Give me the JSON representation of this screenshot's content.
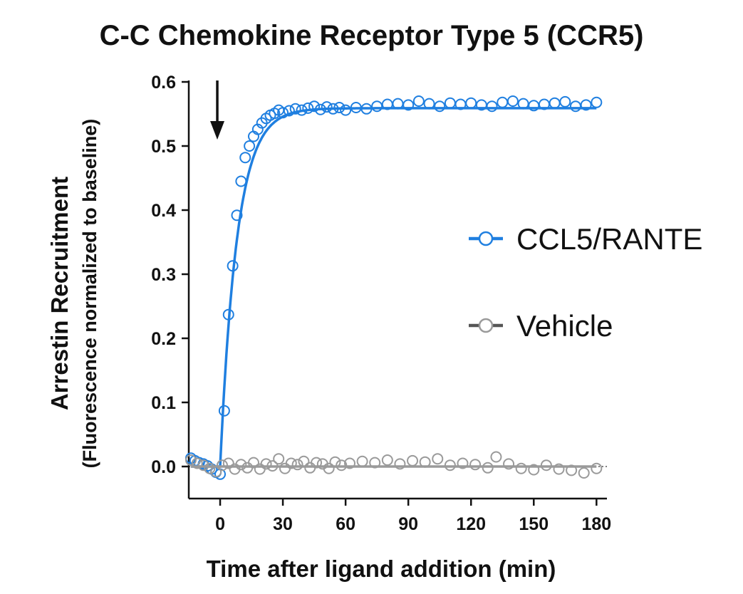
{
  "chart_data": {
    "type": "scatter",
    "title": "C-C Chemokine Receptor Type 5 (CCR5)",
    "ylabel_line1": "Arrestin Recruitment",
    "ylabel_line2": "(Fluorescence normalized to baseline)",
    "xlabel": "Time after ligand addition (min)",
    "xlim": [
      -15,
      185
    ],
    "ylim": [
      -0.05,
      0.6
    ],
    "x_ticks": [
      0,
      30,
      60,
      90,
      120,
      150,
      180
    ],
    "x_tick_labels": [
      "0",
      "30",
      "60",
      "90",
      "120",
      "150",
      "180"
    ],
    "y_ticks": [
      0.0,
      0.1,
      0.2,
      0.3,
      0.4,
      0.5,
      0.6
    ],
    "y_tick_labels": [
      "0.0",
      "0.1",
      "0.2",
      "0.3",
      "0.4",
      "0.5",
      "0.6"
    ],
    "annotation": {
      "type": "arrow-down",
      "x": 0
    },
    "legend": {
      "placement": "right"
    },
    "series": [
      {
        "name": "CCL5/RANTE",
        "color": "#1f7fe0",
        "marker": "open-circle",
        "fit_line": true,
        "x": [
          -14,
          -12,
          -10,
          -8,
          -6,
          -4,
          -2,
          0,
          2,
          4,
          6,
          8,
          10,
          12,
          14,
          16,
          18,
          20,
          22,
          24,
          26,
          28,
          30,
          33,
          36,
          39,
          42,
          45,
          48,
          51,
          54,
          57,
          60,
          65,
          70,
          75,
          80,
          85,
          90,
          95,
          100,
          105,
          110,
          115,
          120,
          125,
          130,
          135,
          140,
          145,
          150,
          155,
          160,
          165,
          170,
          175,
          180
        ],
        "y": [
          0.013,
          0.009,
          0.006,
          0.004,
          0.001,
          -0.004,
          -0.009,
          -0.012,
          0.087,
          0.237,
          0.313,
          0.392,
          0.445,
          0.482,
          0.5,
          0.515,
          0.526,
          0.536,
          0.543,
          0.548,
          0.551,
          0.556,
          0.552,
          0.555,
          0.558,
          0.556,
          0.559,
          0.562,
          0.557,
          0.561,
          0.558,
          0.56,
          0.556,
          0.56,
          0.558,
          0.562,
          0.565,
          0.566,
          0.564,
          0.57,
          0.566,
          0.562,
          0.567,
          0.565,
          0.567,
          0.564,
          0.562,
          0.568,
          0.57,
          0.566,
          0.563,
          0.565,
          0.567,
          0.569,
          0.562,
          0.564,
          0.568
        ],
        "fit": {
          "baseline": 0.0,
          "plateau": 0.559,
          "onset": 0,
          "k_per_min": 0.125
        }
      },
      {
        "name": "Vehicle",
        "color": "#9a9a9a",
        "legend_line_color": "#555555",
        "marker": "open-circle",
        "fit_line": true,
        "x": [
          -14,
          -11,
          -8,
          -5,
          -2,
          1,
          4,
          7,
          10,
          13,
          16,
          19,
          22,
          25,
          28,
          31,
          34,
          37,
          40,
          43,
          46,
          49,
          52,
          55,
          58,
          62,
          68,
          74,
          80,
          86,
          92,
          98,
          104,
          110,
          116,
          122,
          128,
          132,
          138,
          144,
          150,
          156,
          162,
          168,
          174,
          180
        ],
        "y": [
          0.01,
          0.005,
          0.002,
          -0.003,
          -0.008,
          0.002,
          0.005,
          -0.004,
          0.003,
          -0.002,
          0.006,
          -0.004,
          0.004,
          0.001,
          0.012,
          -0.003,
          0.005,
          0.003,
          0.008,
          -0.002,
          0.006,
          0.004,
          -0.003,
          0.007,
          0.002,
          0.005,
          0.008,
          0.006,
          0.01,
          0.004,
          0.009,
          0.007,
          0.012,
          0.002,
          0.005,
          0.003,
          -0.002,
          0.015,
          0.004,
          -0.003,
          -0.005,
          0.002,
          -0.004,
          -0.006,
          -0.01,
          -0.003
        ],
        "fit": {
          "baseline": 0.0,
          "plateau": 0.0,
          "onset": 0,
          "k_per_min": 0
        }
      }
    ]
  }
}
